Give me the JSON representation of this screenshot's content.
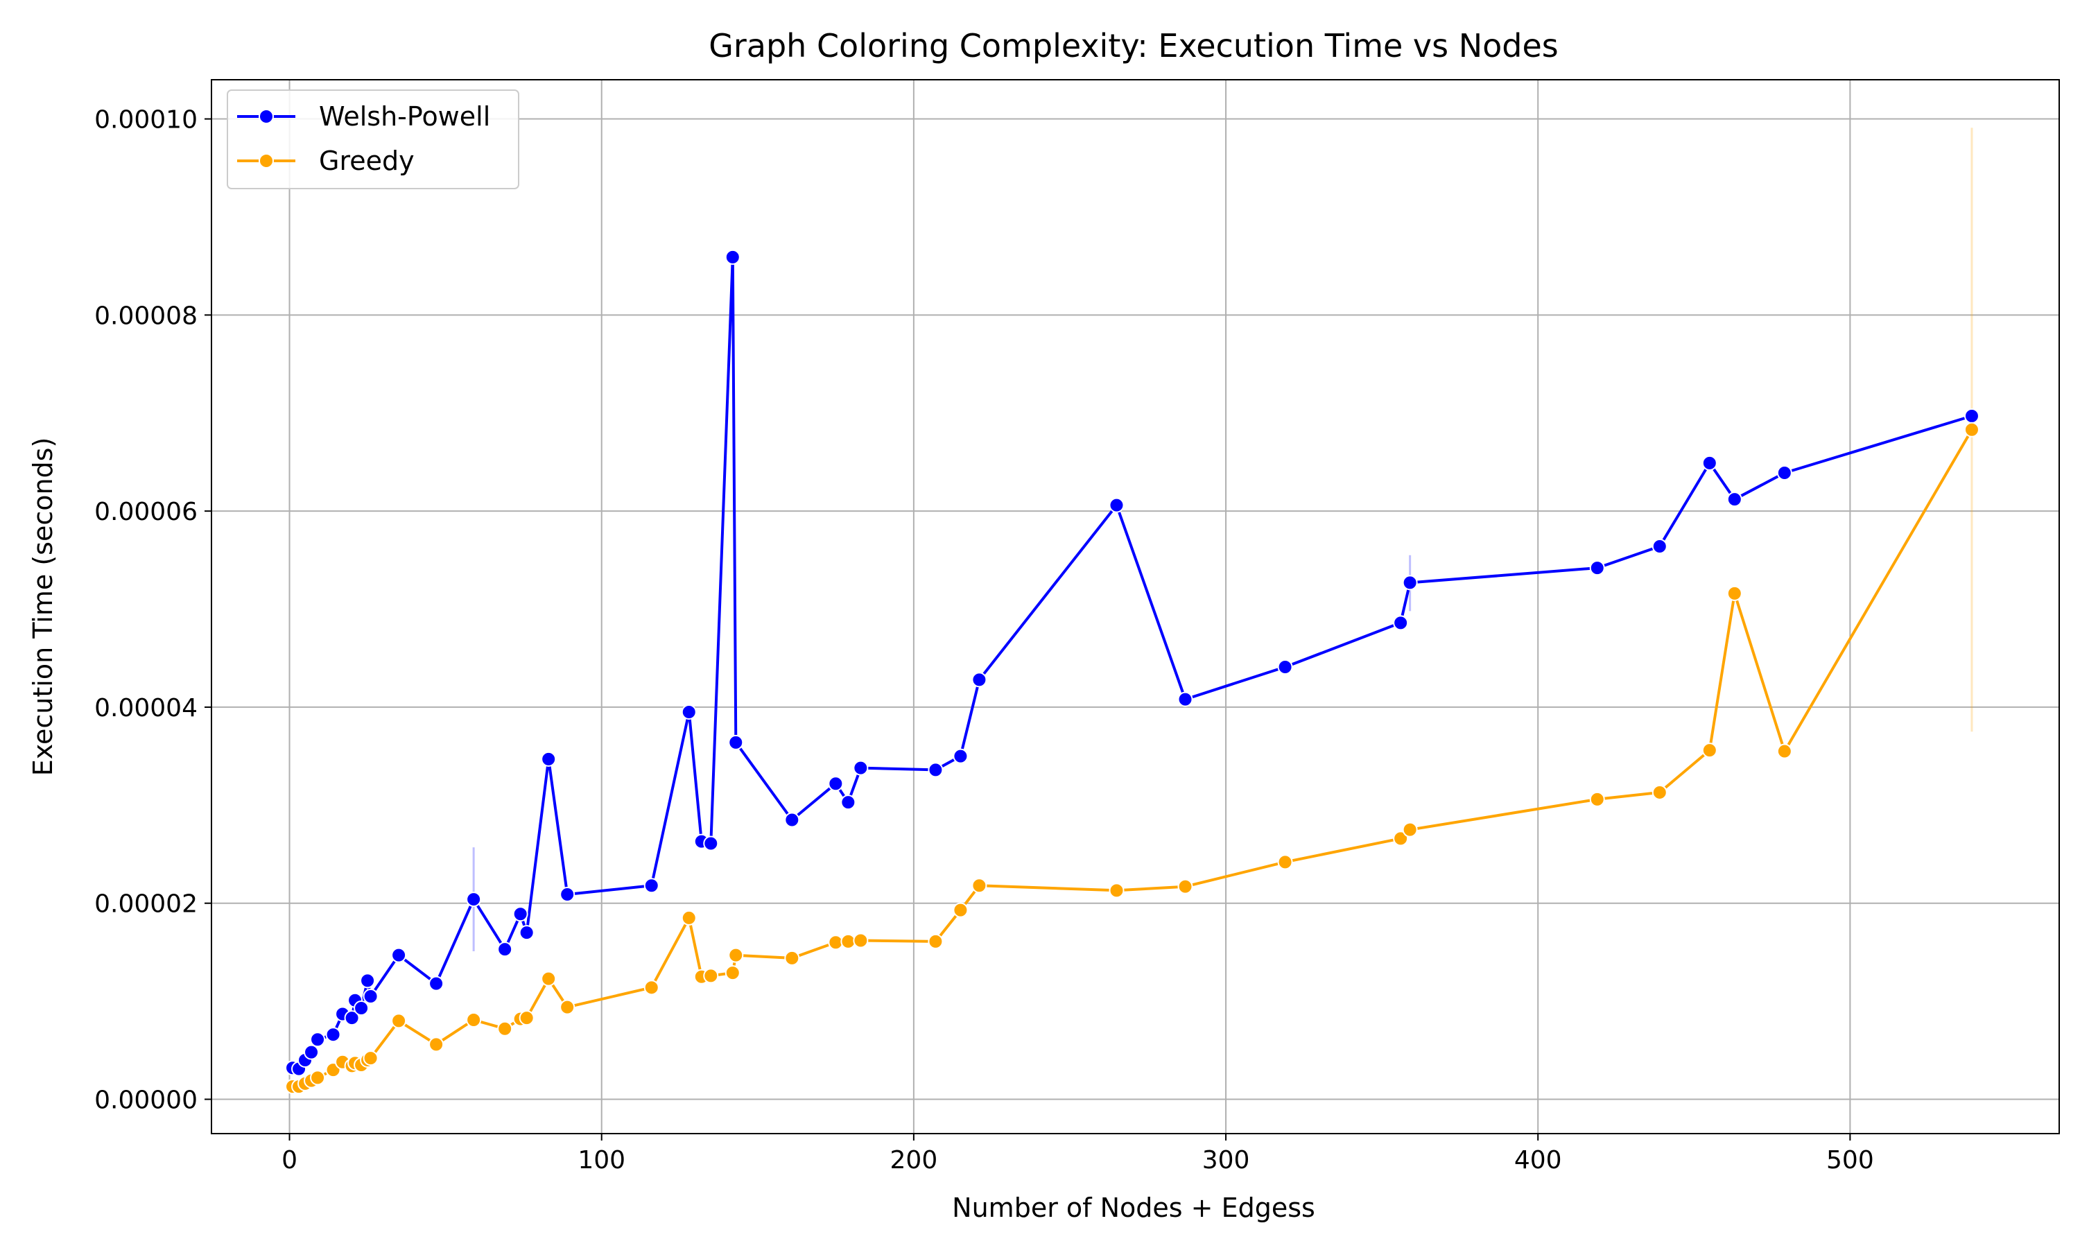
{
  "chart_data": {
    "type": "line",
    "title": "Graph Coloring Complexity: Execution Time vs Nodes",
    "xlabel": "Number of Nodes + Edgess",
    "ylabel": "Execution Time (seconds)",
    "xlim": [
      -25,
      567
    ],
    "ylim": [
      -3.5e-06,
      0.000104
    ],
    "xticks": [
      0,
      100,
      200,
      300,
      400,
      500
    ],
    "xtick_labels": [
      "0",
      "100",
      "200",
      "300",
      "400",
      "500"
    ],
    "yticks": [
      0,
      2e-05,
      4e-05,
      6e-05,
      8e-05,
      0.0001
    ],
    "ytick_labels": [
      "0.00000",
      "0.00002",
      "0.00004",
      "0.00006",
      "0.00008",
      "0.00010"
    ],
    "grid": true,
    "legend_position": "upper-left",
    "series": [
      {
        "name": "Welsh-Powell",
        "color": "#0000ff",
        "marker": "circle",
        "x": [
          1,
          3,
          5,
          7,
          9,
          14,
          17,
          20,
          21,
          23,
          25,
          26,
          35,
          47,
          59,
          69,
          74,
          76,
          83,
          89,
          116,
          128,
          132,
          135,
          142,
          143,
          161,
          175,
          179,
          183,
          207,
          215,
          221,
          265,
          287,
          319,
          356,
          359,
          419,
          439,
          455,
          463,
          479,
          539
        ],
        "y": [
          3.2e-06,
          3.1e-06,
          4e-06,
          4.8e-06,
          6.1e-06,
          6.6e-06,
          8.7e-06,
          8.3e-06,
          1.01e-05,
          9.3e-06,
          1.21e-05,
          1.05e-05,
          1.47e-05,
          1.18e-05,
          2.04e-05,
          1.53e-05,
          1.89e-05,
          1.7e-05,
          3.47e-05,
          2.09e-05,
          2.18e-05,
          3.95e-05,
          2.63e-05,
          2.61e-05,
          8.59e-05,
          3.64e-05,
          2.85e-05,
          3.22e-05,
          3.03e-05,
          3.38e-05,
          3.36e-05,
          3.5e-05,
          4.28e-05,
          6.06e-05,
          4.08e-05,
          4.41e-05,
          4.86e-05,
          5.27e-05,
          5.42e-05,
          5.64e-05,
          6.49e-05,
          6.12e-05,
          6.39e-05,
          6.97e-05
        ],
        "error_bars": [
          {
            "x": 59,
            "low": 1.51e-05,
            "high": 2.57e-05
          },
          {
            "x": 359,
            "low": 4.98e-05,
            "high": 5.55e-05
          }
        ]
      },
      {
        "name": "Greedy",
        "color": "#ffa500",
        "marker": "circle",
        "x": [
          1,
          3,
          5,
          7,
          9,
          14,
          17,
          20,
          21,
          23,
          25,
          26,
          35,
          47,
          59,
          69,
          74,
          76,
          83,
          89,
          116,
          128,
          132,
          135,
          142,
          143,
          161,
          175,
          179,
          183,
          207,
          215,
          221,
          265,
          287,
          319,
          356,
          359,
          419,
          439,
          455,
          463,
          479,
          539
        ],
        "y": [
          1.3e-06,
          1.3e-06,
          1.6e-06,
          1.9e-06,
          2.2e-06,
          3e-06,
          3.8e-06,
          3.4e-06,
          3.7e-06,
          3.5e-06,
          4e-06,
          4.2e-06,
          8e-06,
          5.6e-06,
          8.1e-06,
          7.2e-06,
          8.2e-06,
          8.3e-06,
          1.23e-05,
          9.4e-06,
          1.14e-05,
          1.85e-05,
          1.25e-05,
          1.26e-05,
          1.29e-05,
          1.47e-05,
          1.44e-05,
          1.6e-05,
          1.61e-05,
          1.62e-05,
          1.61e-05,
          1.93e-05,
          2.18e-05,
          2.13e-05,
          2.17e-05,
          2.42e-05,
          2.66e-05,
          2.75e-05,
          3.06e-05,
          3.13e-05,
          3.56e-05,
          5.16e-05,
          3.55e-05,
          6.83e-05
        ],
        "error_bars": [
          {
            "x": 539,
            "low": 3.75e-05,
            "high": 9.91e-05
          }
        ]
      }
    ]
  }
}
